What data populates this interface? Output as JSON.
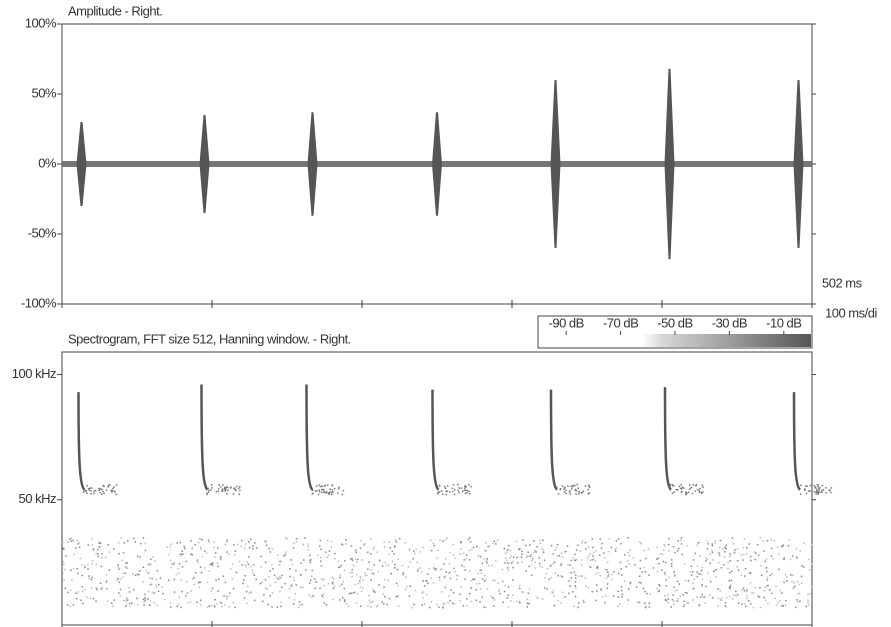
{
  "chart_data": [
    {
      "type": "waveform",
      "title": "Amplitude - Right.",
      "duration_label": "502 ms",
      "scale_label": "100 ms/di",
      "xlim": [
        0,
        500
      ],
      "xticks": [
        0,
        100,
        200,
        300,
        400,
        500
      ],
      "ylim": [
        -100,
        100
      ],
      "yticks": [
        {
          "value": -100,
          "label": "-100%"
        },
        {
          "value": -50,
          "label": "-50%"
        },
        {
          "value": 0,
          "label": "0%"
        },
        {
          "value": 50,
          "label": "50%"
        },
        {
          "value": 100,
          "label": "100%"
        }
      ],
      "color": "#555555",
      "x": [
        13,
        95,
        167,
        250,
        329,
        405,
        491
      ],
      "values": [
        30,
        35,
        37,
        37,
        60,
        68,
        60
      ]
    },
    {
      "type": "spectrogram",
      "title": "Spectrogram, FFT size 512, Hanning window. - Right.",
      "xlim": [
        0,
        500
      ],
      "xticks": [
        0,
        100,
        200,
        300,
        400,
        500
      ],
      "ylim": [
        0,
        109
      ],
      "yticks": [
        {
          "value": 50,
          "label": "50 kHz"
        },
        {
          "value": 100,
          "label": "100 kHz"
        }
      ],
      "color": "#555555",
      "x": [
        11,
        93,
        163,
        247,
        326,
        402,
        488
      ],
      "start_freq": [
        93,
        96,
        96,
        94,
        94,
        95,
        93
      ],
      "end_freq": [
        54,
        54,
        54,
        54,
        54,
        54,
        54
      ],
      "colorbar": {
        "clim": [
          -100,
          0
        ],
        "ticks": [
          {
            "value": -90,
            "label": "-90 dB"
          },
          {
            "value": -70,
            "label": "-70 dB"
          },
          {
            "value": -50,
            "label": "-50 dB"
          },
          {
            "value": -30,
            "label": "-30 dB"
          },
          {
            "value": -10,
            "label": "-10 dB"
          }
        ]
      }
    }
  ]
}
